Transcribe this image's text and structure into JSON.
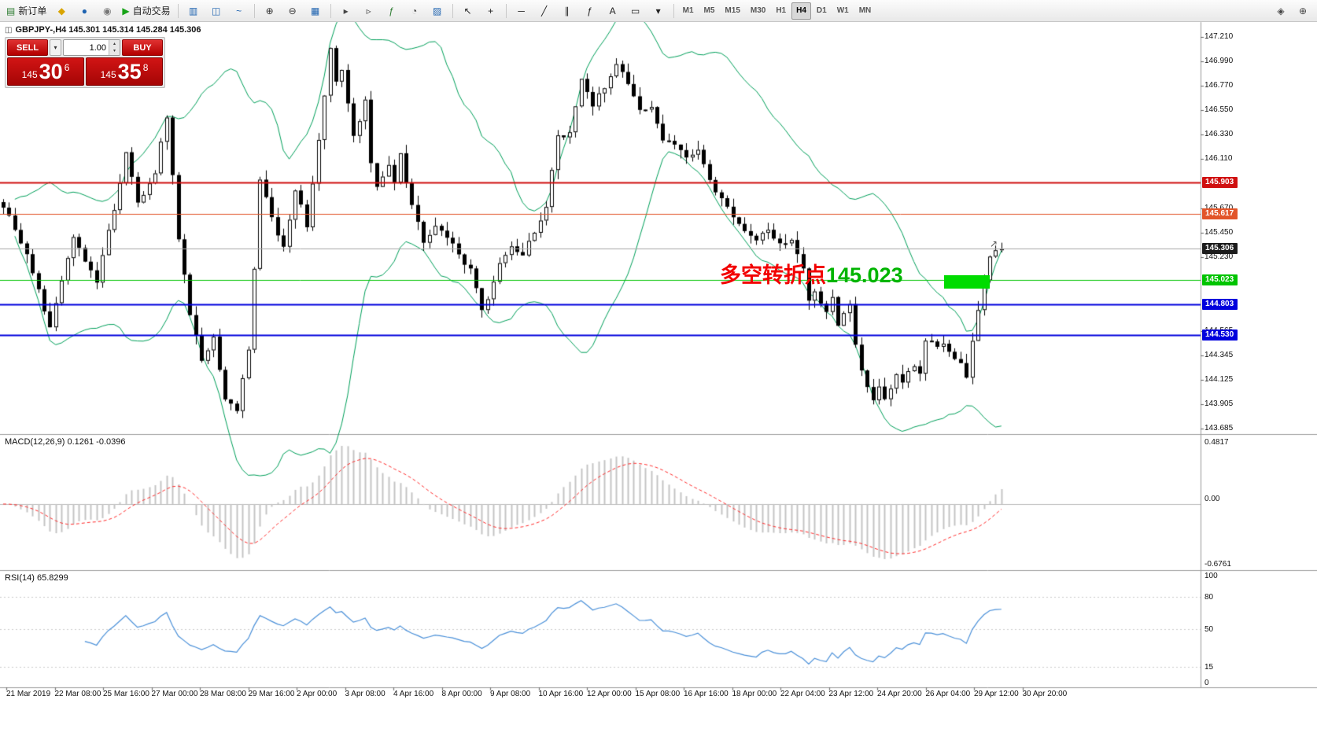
{
  "toolbar": {
    "groups": [
      {
        "items": [
          {
            "name": "new-order-button",
            "glyph": "▤",
            "color": "#2e7d32",
            "label": "新订单"
          },
          {
            "name": "chart-profiles-icon",
            "glyph": "◆",
            "color": "#d9a400"
          },
          {
            "name": "market-watch-icon",
            "glyph": "●",
            "color": "#1e63b0"
          },
          {
            "name": "data-window-icon",
            "glyph": "◉",
            "color": "#767676"
          },
          {
            "name": "auto-trading-button",
            "glyph": "▶",
            "color": "#17a317",
            "label": "自动交易"
          }
        ]
      },
      {
        "items": [
          {
            "name": "bar-chart-icon",
            "glyph": "▥",
            "color": "#1e63b0"
          },
          {
            "name": "candlestick-chart-icon",
            "glyph": "◫",
            "color": "#1e63b0"
          },
          {
            "name": "line-chart-icon",
            "glyph": "~",
            "color": "#1e63b0"
          }
        ]
      },
      {
        "items": [
          {
            "name": "zoom-in-icon",
            "glyph": "⊕",
            "color": "#333333"
          },
          {
            "name": "zoom-out-icon",
            "glyph": "⊖",
            "color": "#333333"
          },
          {
            "name": "tile-windows-icon",
            "glyph": "▦",
            "color": "#1e63b0"
          }
        ]
      },
      {
        "items": [
          {
            "name": "auto-scroll-icon",
            "glyph": "▸",
            "color": "#444444"
          },
          {
            "name": "chart-shift-icon",
            "glyph": "▹",
            "color": "#444444"
          },
          {
            "name": "indicators-list-icon",
            "glyph": "ƒ",
            "color": "#2e7d32"
          },
          {
            "name": "periods-icon",
            "glyph": "◔",
            "color": "#444444"
          },
          {
            "name": "templates-icon",
            "glyph": "▨",
            "color": "#1e63b0"
          }
        ]
      },
      {
        "items": [
          {
            "name": "cursor-icon",
            "glyph": "↖",
            "color": "#222222"
          },
          {
            "name": "crosshair-icon",
            "glyph": "+",
            "color": "#222222"
          }
        ]
      },
      {
        "items": [
          {
            "name": "horizontal-line-icon",
            "glyph": "─",
            "color": "#222222"
          },
          {
            "name": "trendline-icon",
            "glyph": "╱",
            "color": "#222222"
          },
          {
            "name": "equidistant-channel-icon",
            "glyph": "∥",
            "color": "#222222"
          },
          {
            "name": "fibonacci-icon",
            "glyph": "ƒ",
            "color": "#222222"
          },
          {
            "name": "text-tool-icon",
            "glyph": "A",
            "color": "#222222"
          },
          {
            "name": "arrow-label-icon",
            "glyph": "▭",
            "color": "#222222"
          },
          {
            "name": "objects-dropdown-icon",
            "glyph": "▾",
            "color": "#222222"
          }
        ]
      },
      {
        "type": "tf",
        "items": [
          {
            "name": "timeframe-m1",
            "label": "M1"
          },
          {
            "name": "timeframe-m5",
            "label": "M5"
          },
          {
            "name": "timeframe-m15",
            "label": "M15"
          },
          {
            "name": "timeframe-m30",
            "label": "M30"
          },
          {
            "name": "timeframe-h1",
            "label": "H1"
          },
          {
            "name": "timeframe-h4",
            "label": "H4",
            "active": true
          },
          {
            "name": "timeframe-d1",
            "label": "D1"
          },
          {
            "name": "timeframe-w1",
            "label": "W1"
          },
          {
            "name": "timeframe-mn",
            "label": "MN"
          }
        ]
      }
    ],
    "right_items": [
      {
        "name": "pan-hand-icon",
        "glyph": "◈",
        "color": "#444444"
      },
      {
        "name": "magnifier-icon",
        "glyph": "⊕",
        "color": "#444444"
      }
    ]
  },
  "one_click": {
    "sell_label": "SELL",
    "buy_label": "BUY",
    "volume": "1.00",
    "sell_prefix": "145",
    "sell_big": "30",
    "sell_sup": "6",
    "buy_prefix": "145",
    "buy_big": "35",
    "buy_sup": "8"
  },
  "chart": {
    "symbol_line": "GBPJPY-,H4  145.301 145.314 145.284 145.306",
    "annotation": {
      "text": "多空转折点",
      "value": "145.023",
      "text_color": "#f20000",
      "value_color": "#00b400",
      "highlight_color": "#00dc00"
    }
  },
  "chart_data": {
    "type": "candlestick",
    "symbol": "GBPJPY-",
    "timeframe": "H4",
    "ohlc_current": {
      "open": 145.301,
      "high": 145.314,
      "low": 145.284,
      "close": 145.306
    },
    "count": 172,
    "last_price": 145.306,
    "price_axis": {
      "max": 147.345,
      "min": 143.635
    },
    "anchors": [
      [
        0,
        145.7
      ],
      [
        4,
        145.25
      ],
      [
        8,
        144.6
      ],
      [
        12,
        145.4
      ],
      [
        16,
        145.0
      ],
      [
        20,
        145.9
      ],
      [
        21,
        146.2
      ],
      [
        23,
        145.7
      ],
      [
        26,
        146.0
      ],
      [
        28,
        146.5
      ],
      [
        30,
        145.4
      ],
      [
        32,
        144.7
      ],
      [
        34,
        144.3
      ],
      [
        36,
        144.5
      ],
      [
        38,
        143.95
      ],
      [
        40,
        143.85
      ],
      [
        42,
        144.4
      ],
      [
        44,
        145.9
      ],
      [
        46,
        145.6
      ],
      [
        48,
        145.3
      ],
      [
        50,
        145.85
      ],
      [
        52,
        145.5
      ],
      [
        54,
        146.3
      ],
      [
        56,
        147.1
      ],
      [
        57,
        146.8
      ],
      [
        58,
        146.9
      ],
      [
        60,
        146.3
      ],
      [
        62,
        146.65
      ],
      [
        63,
        146.1
      ],
      [
        64,
        145.85
      ],
      [
        66,
        146.05
      ],
      [
        67,
        145.9
      ],
      [
        68,
        146.15
      ],
      [
        70,
        145.7
      ],
      [
        72,
        145.35
      ],
      [
        74,
        145.5
      ],
      [
        76,
        145.4
      ],
      [
        78,
        145.25
      ],
      [
        80,
        145.1
      ],
      [
        82,
        144.75
      ],
      [
        83,
        144.85
      ],
      [
        85,
        145.15
      ],
      [
        87,
        145.35
      ],
      [
        89,
        145.25
      ],
      [
        91,
        145.45
      ],
      [
        93,
        145.7
      ],
      [
        95,
        146.3
      ],
      [
        97,
        146.35
      ],
      [
        99,
        146.85
      ],
      [
        101,
        146.6
      ],
      [
        103,
        146.75
      ],
      [
        105,
        146.95
      ],
      [
        107,
        146.8
      ],
      [
        109,
        146.55
      ],
      [
        111,
        146.6
      ],
      [
        113,
        146.3
      ],
      [
        115,
        146.25
      ],
      [
        117,
        146.15
      ],
      [
        119,
        146.2
      ],
      [
        121,
        145.9
      ],
      [
        123,
        145.75
      ],
      [
        125,
        145.6
      ],
      [
        127,
        145.45
      ],
      [
        129,
        145.4
      ],
      [
        131,
        145.45
      ],
      [
        133,
        145.35
      ],
      [
        135,
        145.4
      ],
      [
        137,
        145.1
      ],
      [
        138,
        144.85
      ],
      [
        139,
        144.9
      ],
      [
        141,
        144.75
      ],
      [
        142,
        144.85
      ],
      [
        143,
        144.6
      ],
      [
        145,
        144.8
      ],
      [
        146,
        144.45
      ],
      [
        147,
        144.2
      ],
      [
        149,
        143.95
      ],
      [
        150,
        144.05
      ],
      [
        151,
        143.95
      ],
      [
        153,
        144.15
      ],
      [
        154,
        144.1
      ],
      [
        156,
        144.25
      ],
      [
        157,
        144.2
      ],
      [
        158,
        144.5
      ],
      [
        160,
        144.4
      ],
      [
        161,
        144.45
      ],
      [
        162,
        144.35
      ],
      [
        164,
        144.3
      ],
      [
        165,
        144.15
      ],
      [
        166,
        144.5
      ],
      [
        168,
        145.0
      ],
      [
        169,
        145.25
      ],
      [
        170,
        145.28
      ],
      [
        171,
        145.31
      ]
    ],
    "levels": [
      {
        "price": 145.903,
        "label": "145.903",
        "color": "#d01010",
        "width": 2
      },
      {
        "price": 145.617,
        "label": "145.617",
        "color": "#e2552a",
        "width": 1
      },
      {
        "price": 145.306,
        "label": "145.306",
        "color": "#a8a8a8",
        "tag_color": "#1c1c1c",
        "width": 1
      },
      {
        "price": 145.023,
        "label": "145.023",
        "color": "#00c400",
        "width": 1
      },
      {
        "price": 144.803,
        "label": "144.803",
        "color": "#0000dd",
        "width": 2
      },
      {
        "price": 144.53,
        "label": "144.530",
        "color": "#0000dd",
        "width": 2
      }
    ],
    "price_ticks": [
      {
        "p": 147.21,
        "t": "147.210"
      },
      {
        "p": 146.99,
        "t": "146.990"
      },
      {
        "p": 146.77,
        "t": "146.770"
      },
      {
        "p": 146.55,
        "t": "146.550"
      },
      {
        "p": 146.33,
        "t": "146.330"
      },
      {
        "p": 146.11,
        "t": "146.110"
      },
      {
        "p": 145.67,
        "t": "145.670"
      },
      {
        "p": 145.45,
        "t": "145.450"
      },
      {
        "p": 145.23,
        "t": "145.230"
      },
      {
        "p": 144.565,
        "t": "144.565"
      },
      {
        "p": 144.345,
        "t": "144.345"
      },
      {
        "p": 144.125,
        "t": "144.125"
      },
      {
        "p": 143.905,
        "t": "143.905"
      },
      {
        "p": 143.685,
        "t": "143.685"
      }
    ],
    "colors": {
      "bands": "#00a05a",
      "macd_hist": "#c4c4c4",
      "macd_signal": "#ff2a2a",
      "rsi": "#4a90d9",
      "bull": "#ffffff",
      "bear": "#000000"
    },
    "indicators": {
      "bollinger": {
        "period": 20,
        "deviation": 2
      },
      "macd": {
        "fast": 12,
        "slow": 26,
        "signal": 9
      },
      "rsi": {
        "period": 14
      }
    }
  },
  "macd": {
    "label": "MACD(12,26,9) 0.1261 -0.0396",
    "scale_max": "0.4817",
    "scale_zero": "0.00",
    "scale_min": "-0.6761"
  },
  "rsi": {
    "label": "RSI(14) 65.8299",
    "scale": [
      {
        "v": 100,
        "t": "100"
      },
      {
        "v": 80,
        "t": "80"
      },
      {
        "v": 50,
        "t": "50"
      },
      {
        "v": 15,
        "t": "15"
      },
      {
        "v": 0,
        "t": "0"
      }
    ],
    "levels": [
      80,
      50,
      15
    ]
  },
  "time_axis": {
    "labels": [
      "21 Mar 2019",
      "22 Mar 08:00",
      "25 Mar 16:00",
      "27 Mar 00:00",
      "28 Mar 08:00",
      "29 Mar 16:00",
      "2 Apr 00:00",
      "3 Apr 08:00",
      "4 Apr 16:00",
      "8 Apr 00:00",
      "9 Apr 08:00",
      "10 Apr 16:00",
      "12 Apr 00:00",
      "15 Apr 08:00",
      "16 Apr 16:00",
      "18 Apr 00:00",
      "22 Apr 04:00",
      "23 Apr 12:00",
      "24 Apr 20:00",
      "26 Apr 04:00",
      "29 Apr 12:00",
      "30 Apr 20:00"
    ]
  },
  "icons": {
    "symbol_glyph": "◫",
    "dropdown_glyph": "▾",
    "spin_up_glyph": "▴",
    "spin_down_glyph": "▾",
    "price_arrow_glyph": "↗"
  }
}
